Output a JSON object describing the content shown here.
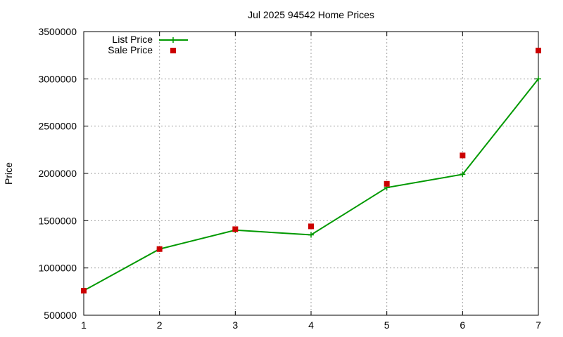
{
  "colors": {
    "list_price": "#009900",
    "sale_price": "#cc0000"
  },
  "chart_data": {
    "type": "line",
    "title": "Jul 2025 94542 Home Prices",
    "xlabel": "",
    "ylabel": "Price",
    "x": [
      1,
      2,
      3,
      4,
      5,
      6,
      7
    ],
    "xlim": [
      1,
      7
    ],
    "ylim": [
      500000,
      3500000
    ],
    "x_ticks": [
      "1",
      "2",
      "3",
      "4",
      "5",
      "6",
      "7"
    ],
    "y_ticks": [
      "500000",
      "1000000",
      "1500000",
      "2000000",
      "2500000",
      "3000000",
      "3500000"
    ],
    "grid": true,
    "legend_position": "top-left",
    "series": [
      {
        "name": "List Price",
        "style": "line+cross",
        "values": [
          760000,
          1200000,
          1400000,
          1350000,
          1850000,
          1990000,
          3000000
        ]
      },
      {
        "name": "Sale Price",
        "style": "square",
        "values": [
          760000,
          1200000,
          1410000,
          1440000,
          1890000,
          2190000,
          3300000
        ]
      }
    ]
  }
}
